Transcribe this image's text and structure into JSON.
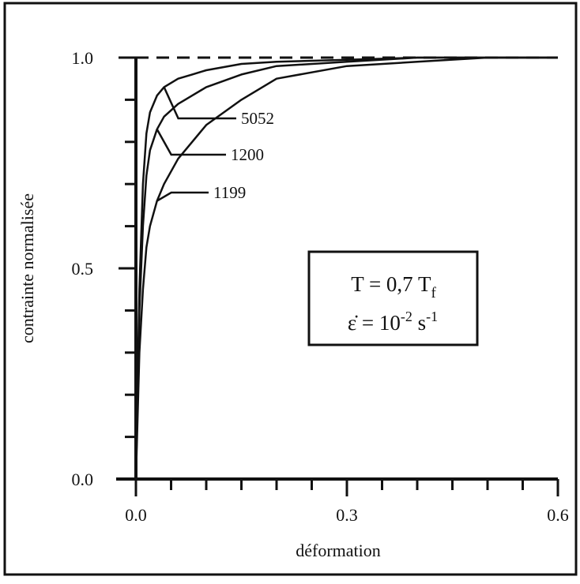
{
  "chart_data": {
    "type": "line",
    "title": "",
    "xlabel": "déformation",
    "ylabel": "contrainte normalisée",
    "xlim": [
      0.0,
      0.6
    ],
    "ylim": [
      0.0,
      1.0
    ],
    "xticks": [
      "0.0",
      "0.3",
      "0.6"
    ],
    "yticks": [
      "0.0",
      "0.5",
      "1.0"
    ],
    "reference_line": {
      "y": 1.0,
      "style": "dashed"
    },
    "series": [
      {
        "name": "5052",
        "x": [
          0.0,
          0.005,
          0.01,
          0.015,
          0.02,
          0.03,
          0.04,
          0.06,
          0.08,
          0.1,
          0.15,
          0.2,
          0.3,
          0.4,
          0.5,
          0.6
        ],
        "y": [
          0.0,
          0.45,
          0.7,
          0.82,
          0.87,
          0.91,
          0.93,
          0.95,
          0.96,
          0.97,
          0.985,
          0.99,
          0.995,
          1.0,
          1.0,
          1.0
        ]
      },
      {
        "name": "1200",
        "x": [
          0.0,
          0.005,
          0.01,
          0.015,
          0.02,
          0.03,
          0.04,
          0.06,
          0.08,
          0.1,
          0.15,
          0.2,
          0.3,
          0.4,
          0.5,
          0.6
        ],
        "y": [
          0.0,
          0.4,
          0.6,
          0.72,
          0.78,
          0.83,
          0.86,
          0.89,
          0.91,
          0.93,
          0.96,
          0.98,
          0.99,
          1.0,
          1.0,
          1.0
        ]
      },
      {
        "name": "1199",
        "x": [
          0.0,
          0.005,
          0.01,
          0.015,
          0.02,
          0.03,
          0.04,
          0.06,
          0.08,
          0.1,
          0.15,
          0.2,
          0.3,
          0.4,
          0.5,
          0.6
        ],
        "y": [
          0.0,
          0.3,
          0.45,
          0.55,
          0.6,
          0.66,
          0.7,
          0.76,
          0.8,
          0.84,
          0.9,
          0.95,
          0.98,
          0.99,
          1.0,
          1.0
        ]
      }
    ],
    "legend_box": {
      "line1": {
        "prefix": "T = 0,7 T",
        "subscript": "f"
      },
      "line2": {
        "prefix": "ε̇ = 10",
        "superscript1": "-2",
        "middle": " s",
        "superscript2": "-1"
      }
    },
    "colors": {
      "ink": "#111111",
      "background": "#ffffff"
    }
  }
}
